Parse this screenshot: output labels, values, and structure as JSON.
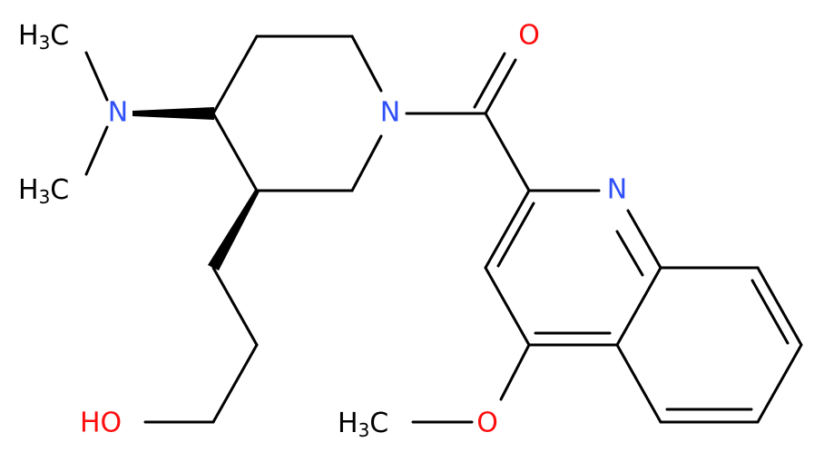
{
  "atoms": [
    {
      "parts": [
        "H",
        "3",
        "C"
      ]
    },
    {
      "parts": [
        "N"
      ]
    },
    {
      "parts": [
        "H",
        "3",
        "C"
      ]
    },
    {
      "parts": [
        "N"
      ]
    },
    {
      "parts": [
        "O"
      ]
    },
    {
      "parts": [
        "N"
      ]
    },
    {
      "parts": [
        "HO"
      ]
    },
    {
      "parts": [
        "H",
        "3",
        "C"
      ]
    },
    {
      "parts": [
        "O"
      ]
    }
  ]
}
